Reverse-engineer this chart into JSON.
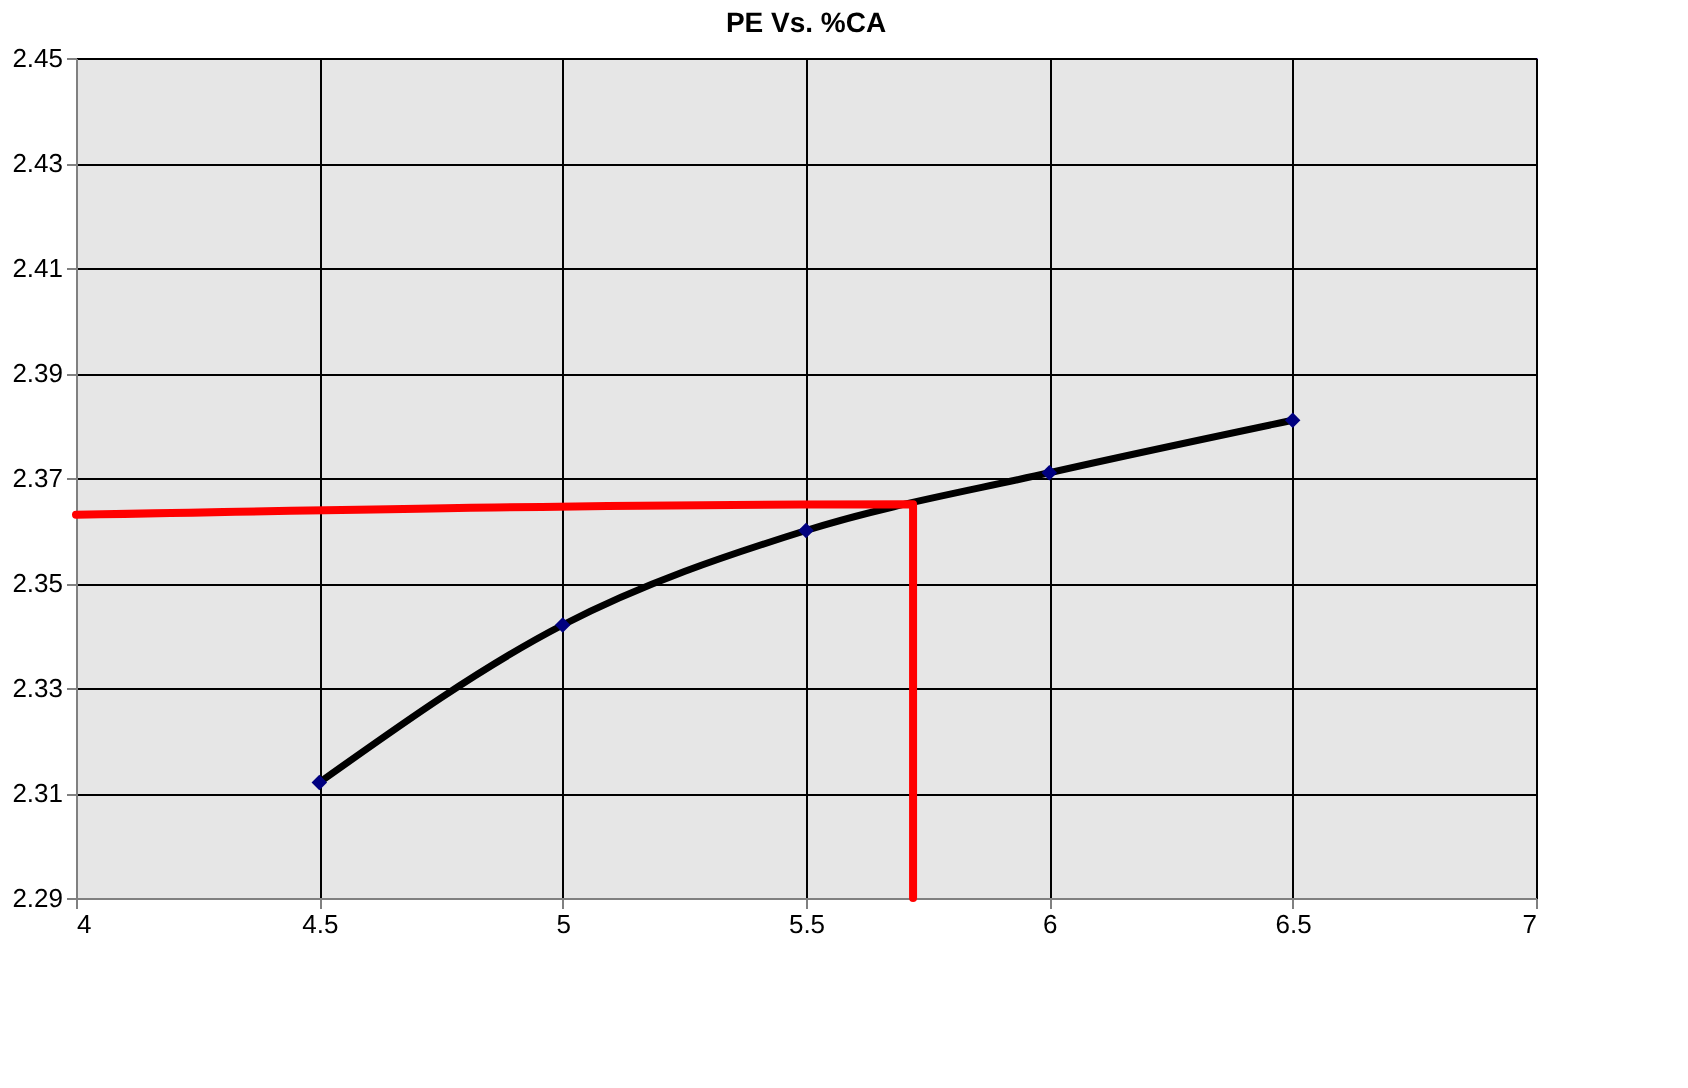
{
  "chart_data": {
    "type": "line",
    "title": "PE Vs. %CA",
    "series": [
      {
        "color": "#000000",
        "x": [
          4.5,
          5,
          5.5,
          6,
          6.5
        ],
        "values": [
          2.312,
          2.342,
          2.36,
          2.371,
          2.381
        ],
        "marker": "diamond"
      },
      {
        "color": "#ff0000",
        "x": [
          4,
          5.72,
          5.72
        ],
        "values": [
          2.363,
          2.365,
          2.29
        ],
        "marker": "none"
      }
    ],
    "xlim": [
      4,
      7
    ],
    "xticks": [
      4,
      4.5,
      5,
      5.5,
      6,
      6.5,
      7
    ],
    "ylim": [
      2.29,
      2.45
    ],
    "yticks": [
      2.29,
      2.31,
      2.33,
      2.35,
      2.37,
      2.39,
      2.41,
      2.43,
      2.45
    ],
    "grid": true
  }
}
